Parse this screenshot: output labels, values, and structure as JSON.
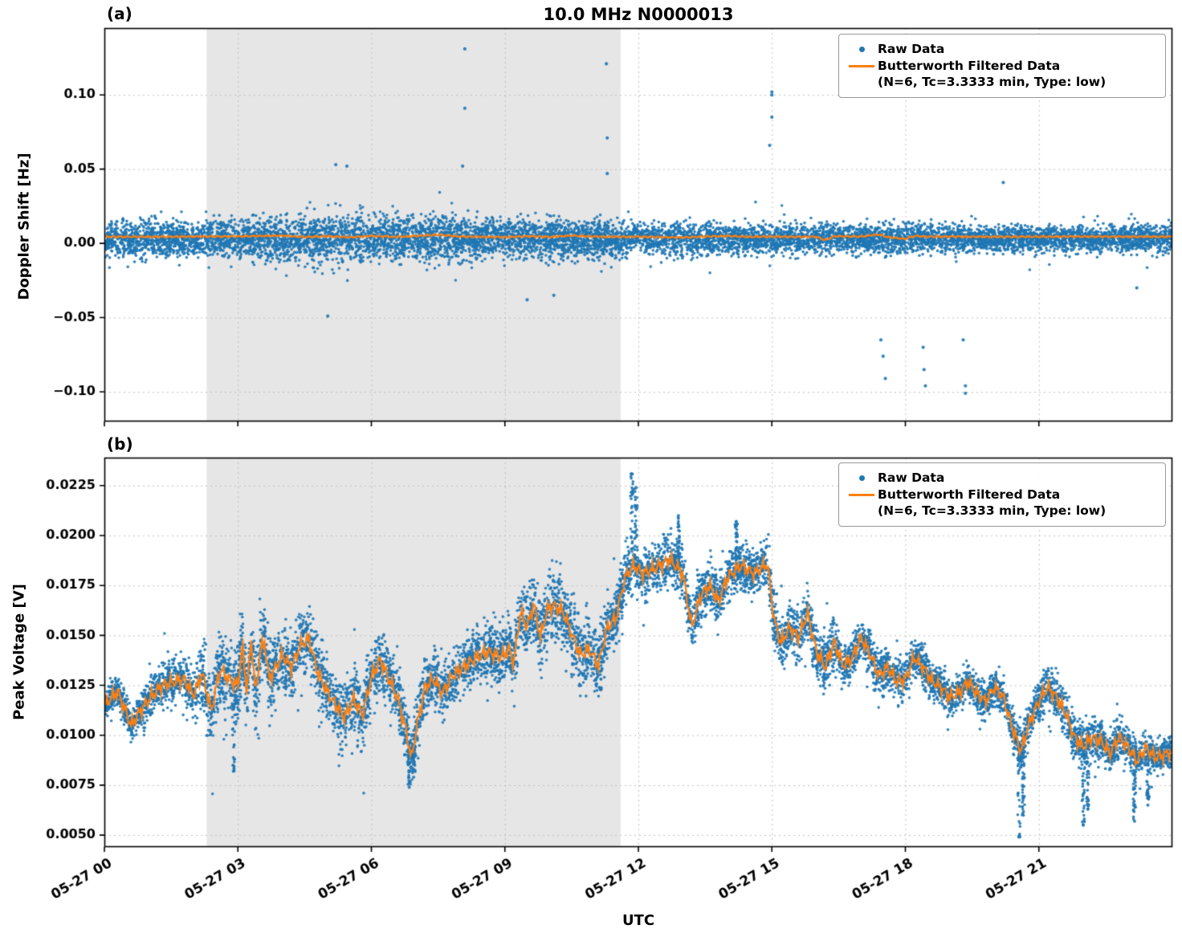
{
  "figure": {
    "title": "10.0 MHz N0000013",
    "panel_a_label": "(a)",
    "panel_b_label": "(b)",
    "xlabel": "UTC",
    "ylabel_a": "Doppler Shift [Hz]",
    "ylabel_b": "Peak Voltage [V]"
  },
  "legend": {
    "raw": "Raw Data",
    "filtered_1": "Butterworth Filtered Data",
    "filtered_2": "(N=6, Tc=3.3333 min, Type: low)"
  },
  "colors": {
    "raw": "#1f77b4",
    "filtered": "#ff7f0e",
    "shade": "#e6e6e6",
    "grid": "#bfbfbf",
    "axis": "#000000"
  },
  "chart_data": [
    {
      "type": "scatter",
      "panel": "a",
      "title": "10.0 MHz N0000013",
      "ylabel": "Doppler Shift [Hz]",
      "xlim": [
        0,
        24
      ],
      "ylim": [
        -0.12,
        0.145
      ],
      "grid": true,
      "legend_position": "upper right",
      "shaded_region_hours": [
        2.3,
        11.6
      ],
      "yticks": {
        "values": [
          0.1,
          0.05,
          0.0,
          -0.05,
          -0.1
        ],
        "labels": [
          "0.10",
          "0.05",
          "0.00",
          "−0.05",
          "−0.10"
        ]
      },
      "xticks": {
        "hours": [
          0,
          3,
          6,
          9,
          12,
          15,
          18,
          21
        ],
        "labels": [
          "05-27 00",
          "05-27 03",
          "05-27 06",
          "05-27 09",
          "05-27 12",
          "05-27 15",
          "05-27 18",
          "05-27 21"
        ]
      },
      "series": [
        {
          "name": "Raw Data",
          "kind": "scatter-band",
          "n_points": 9000,
          "center": 0.003,
          "spread": {
            "x": [
              0,
              2,
              3,
              4,
              4.5,
              6,
              7,
              8,
              9,
              10,
              11,
              12,
              13,
              14,
              15,
              16,
              17,
              18,
              19,
              20,
              21,
              22,
              23,
              24
            ],
            "half_width": [
              0.013,
              0.013,
              0.014,
              0.016,
              0.018,
              0.018,
              0.018,
              0.017,
              0.015,
              0.015,
              0.014,
              0.012,
              0.012,
              0.011,
              0.011,
              0.011,
              0.011,
              0.011,
              0.0105,
              0.01,
              0.01,
              0.01,
              0.0105,
              0.011
            ],
            "unit": "Hz"
          },
          "outliers": [
            [
              5.2,
              0.053
            ],
            [
              5.45,
              0.052
            ],
            [
              8.05,
              0.052
            ],
            [
              8.1,
              0.091
            ],
            [
              8.1,
              0.131
            ],
            [
              11.28,
              0.121
            ],
            [
              11.3,
              0.071
            ],
            [
              11.3,
              0.047
            ],
            [
              15.0,
              0.102
            ],
            [
              15.0,
              0.1
            ],
            [
              15.0,
              0.085
            ],
            [
              14.95,
              0.066
            ],
            [
              5.02,
              -0.049
            ],
            [
              9.5,
              -0.038
            ],
            [
              10.1,
              -0.035
            ],
            [
              17.45,
              -0.065
            ],
            [
              17.5,
              -0.076
            ],
            [
              17.55,
              -0.091
            ],
            [
              18.4,
              -0.07
            ],
            [
              18.42,
              -0.085
            ],
            [
              18.45,
              -0.096
            ],
            [
              19.3,
              -0.065
            ],
            [
              19.35,
              -0.096
            ],
            [
              19.35,
              -0.101
            ],
            [
              20.2,
              0.041
            ],
            [
              23.2,
              -0.03
            ]
          ]
        },
        {
          "name": "Butterworth Filtered Data (N=6, Tc=3.3333 min, Type: low)",
          "kind": "line",
          "x": [
            0,
            1,
            2,
            3,
            4,
            4.5,
            5,
            5.5,
            6,
            6.5,
            7,
            7.5,
            8,
            8.5,
            9,
            9.5,
            10,
            10.5,
            11,
            11.5,
            12,
            12.5,
            13,
            13.5,
            14,
            14.5,
            15,
            15.5,
            16,
            16.2,
            16.4,
            17,
            17.4,
            17.6,
            18,
            18.2,
            18.5,
            19,
            20,
            21,
            22,
            23,
            24
          ],
          "y": [
            0.0045,
            0.0044,
            0.0046,
            0.0047,
            0.0052,
            0.0043,
            0.0048,
            0.0041,
            0.005,
            0.0044,
            0.0049,
            0.0058,
            0.0046,
            0.0044,
            0.0042,
            0.0048,
            0.0044,
            0.0052,
            0.0046,
            0.0044,
            0.0045,
            0.0042,
            0.004,
            0.0046,
            0.005,
            0.0044,
            0.0046,
            0.0044,
            0.0045,
            0.0022,
            0.0048,
            0.0046,
            0.006,
            0.0042,
            0.003,
            0.005,
            0.0045,
            0.0046,
            0.0044,
            0.0045,
            0.0046,
            0.0045,
            0.0045
          ],
          "jitter": [
            0.0004,
            40,
            0.0003,
            97
          ]
        }
      ]
    },
    {
      "type": "scatter",
      "panel": "b",
      "ylabel": "Peak Voltage [V]",
      "xlabel": "UTC",
      "xlim": [
        0,
        24
      ],
      "ylim": [
        0.0044,
        0.0239
      ],
      "grid": true,
      "legend_position": "upper right",
      "shaded_region_hours": [
        2.3,
        11.6
      ],
      "yticks": {
        "values": [
          0.0225,
          0.02,
          0.0175,
          0.015,
          0.0125,
          0.01,
          0.0075,
          0.005
        ],
        "labels": [
          "0.0225",
          "0.0200",
          "0.0175",
          "0.0150",
          "0.0125",
          "0.0100",
          "0.0075",
          "0.0050"
        ]
      },
      "xticks": {
        "hours": [
          0,
          3,
          6,
          9,
          12,
          15,
          18,
          21
        ],
        "labels": [
          "05-27 00",
          "05-27 03",
          "05-27 06",
          "05-27 09",
          "05-27 12",
          "05-27 15",
          "05-27 18",
          "05-27 21"
        ]
      },
      "series": [
        {
          "name": "Raw Data",
          "kind": "scatter-band",
          "n_points": 9000,
          "center_ref": "filtered",
          "spread": {
            "x": [
              0,
              1.5,
              2.3,
              3,
              4,
              5,
              6,
              7,
              8,
              9,
              10,
              11,
              12,
              13,
              14,
              15,
              16,
              17,
              18,
              19,
              20,
              21,
              22,
              23,
              24
            ],
            "half_width": [
              0.0009,
              0.0012,
              0.002,
              0.0022,
              0.002,
              0.0018,
              0.002,
              0.0018,
              0.0015,
              0.0018,
              0.002,
              0.002,
              0.0013,
              0.0015,
              0.0013,
              0.0015,
              0.0015,
              0.0013,
              0.0012,
              0.001,
              0.001,
              0.0012,
              0.0012,
              0.0011,
              0.001
            ],
            "unit": "V"
          },
          "spikes": [
            {
              "x": 2.9,
              "y": 0.0082
            },
            {
              "x": 6.85,
              "y": 0.0074
            },
            {
              "x": 6.95,
              "y": 0.0079
            },
            {
              "x": 11.85,
              "y": 0.0231
            },
            {
              "x": 11.95,
              "y": 0.0224
            },
            {
              "x": 12.9,
              "y": 0.021
            },
            {
              "x": 14.2,
              "y": 0.0207
            },
            {
              "x": 20.55,
              "y": 0.0049
            },
            {
              "x": 20.65,
              "y": 0.006
            },
            {
              "x": 22.0,
              "y": 0.0055
            },
            {
              "x": 22.1,
              "y": 0.0063
            },
            {
              "x": 23.15,
              "y": 0.0057
            },
            {
              "x": 23.45,
              "y": 0.0065
            }
          ]
        },
        {
          "name": "Butterworth Filtered Data (N=6, Tc=3.3333 min, Type: low)",
          "kind": "line",
          "x": [
            0,
            0.3,
            0.6,
            0.8,
            1.0,
            1.3,
            1.6,
            1.8,
            2.0,
            2.2,
            2.4,
            2.6,
            2.8,
            3.0,
            3.1,
            3.2,
            3.3,
            3.4,
            3.5,
            3.6,
            3.7,
            3.8,
            4.0,
            4.2,
            4.4,
            4.6,
            4.8,
            5.0,
            5.2,
            5.4,
            5.6,
            5.8,
            6.0,
            6.2,
            6.4,
            6.6,
            6.8,
            6.9,
            7.0,
            7.2,
            7.4,
            7.6,
            7.8,
            8.0,
            8.3,
            8.6,
            8.9,
            9.1,
            9.2,
            9.35,
            9.5,
            9.65,
            9.8,
            9.95,
            10.1,
            10.3,
            10.5,
            10.7,
            10.9,
            11.1,
            11.3,
            11.5,
            11.7,
            11.9,
            12.1,
            12.4,
            12.7,
            13.0,
            13.2,
            13.4,
            13.6,
            13.8,
            14.0,
            14.3,
            14.6,
            14.9,
            15.05,
            15.2,
            15.4,
            15.6,
            15.8,
            16.0,
            16.2,
            16.4,
            16.6,
            16.8,
            17.0,
            17.2,
            17.4,
            17.6,
            17.8,
            18.0,
            18.2,
            18.4,
            18.6,
            18.8,
            19.0,
            19.2,
            19.4,
            19.6,
            19.8,
            20.0,
            20.2,
            20.4,
            20.6,
            20.8,
            21.0,
            21.2,
            21.4,
            21.6,
            21.8,
            22.0,
            22.2,
            22.4,
            22.6,
            22.8,
            23.0,
            23.2,
            23.4,
            23.6,
            23.8,
            24.0
          ],
          "y": [
            0.0115,
            0.0122,
            0.0105,
            0.0112,
            0.0118,
            0.0125,
            0.0127,
            0.0128,
            0.012,
            0.0131,
            0.0112,
            0.0133,
            0.0128,
            0.0125,
            0.0145,
            0.0122,
            0.0148,
            0.012,
            0.0142,
            0.0147,
            0.0128,
            0.0132,
            0.014,
            0.0134,
            0.0145,
            0.0148,
            0.0131,
            0.0122,
            0.0115,
            0.0109,
            0.0118,
            0.011,
            0.0129,
            0.0138,
            0.0128,
            0.0118,
            0.01,
            0.0088,
            0.0102,
            0.0124,
            0.0128,
            0.0121,
            0.0129,
            0.0133,
            0.0138,
            0.0142,
            0.0139,
            0.0143,
            0.0136,
            0.0162,
            0.0154,
            0.0166,
            0.0149,
            0.0163,
            0.0165,
            0.0162,
            0.0151,
            0.014,
            0.0143,
            0.0135,
            0.0154,
            0.0159,
            0.0179,
            0.0185,
            0.0181,
            0.0184,
            0.0188,
            0.0181,
            0.0154,
            0.017,
            0.0175,
            0.0167,
            0.0179,
            0.0185,
            0.0181,
            0.0186,
            0.0158,
            0.0146,
            0.0154,
            0.0149,
            0.0161,
            0.0142,
            0.0134,
            0.0147,
            0.0135,
            0.0138,
            0.0149,
            0.0141,
            0.013,
            0.0134,
            0.0127,
            0.0128,
            0.0139,
            0.0134,
            0.0127,
            0.0124,
            0.0119,
            0.0121,
            0.0127,
            0.0121,
            0.0117,
            0.0124,
            0.0119,
            0.0104,
            0.0092,
            0.0107,
            0.0117,
            0.0124,
            0.0119,
            0.0111,
            0.0099,
            0.0094,
            0.0099,
            0.0097,
            0.0091,
            0.0099,
            0.0094,
            0.0087,
            0.0094,
            0.0089,
            0.009,
            0.0092
          ],
          "jitter": [
            0.00022,
            43,
            0.00018,
            101
          ]
        }
      ]
    }
  ]
}
